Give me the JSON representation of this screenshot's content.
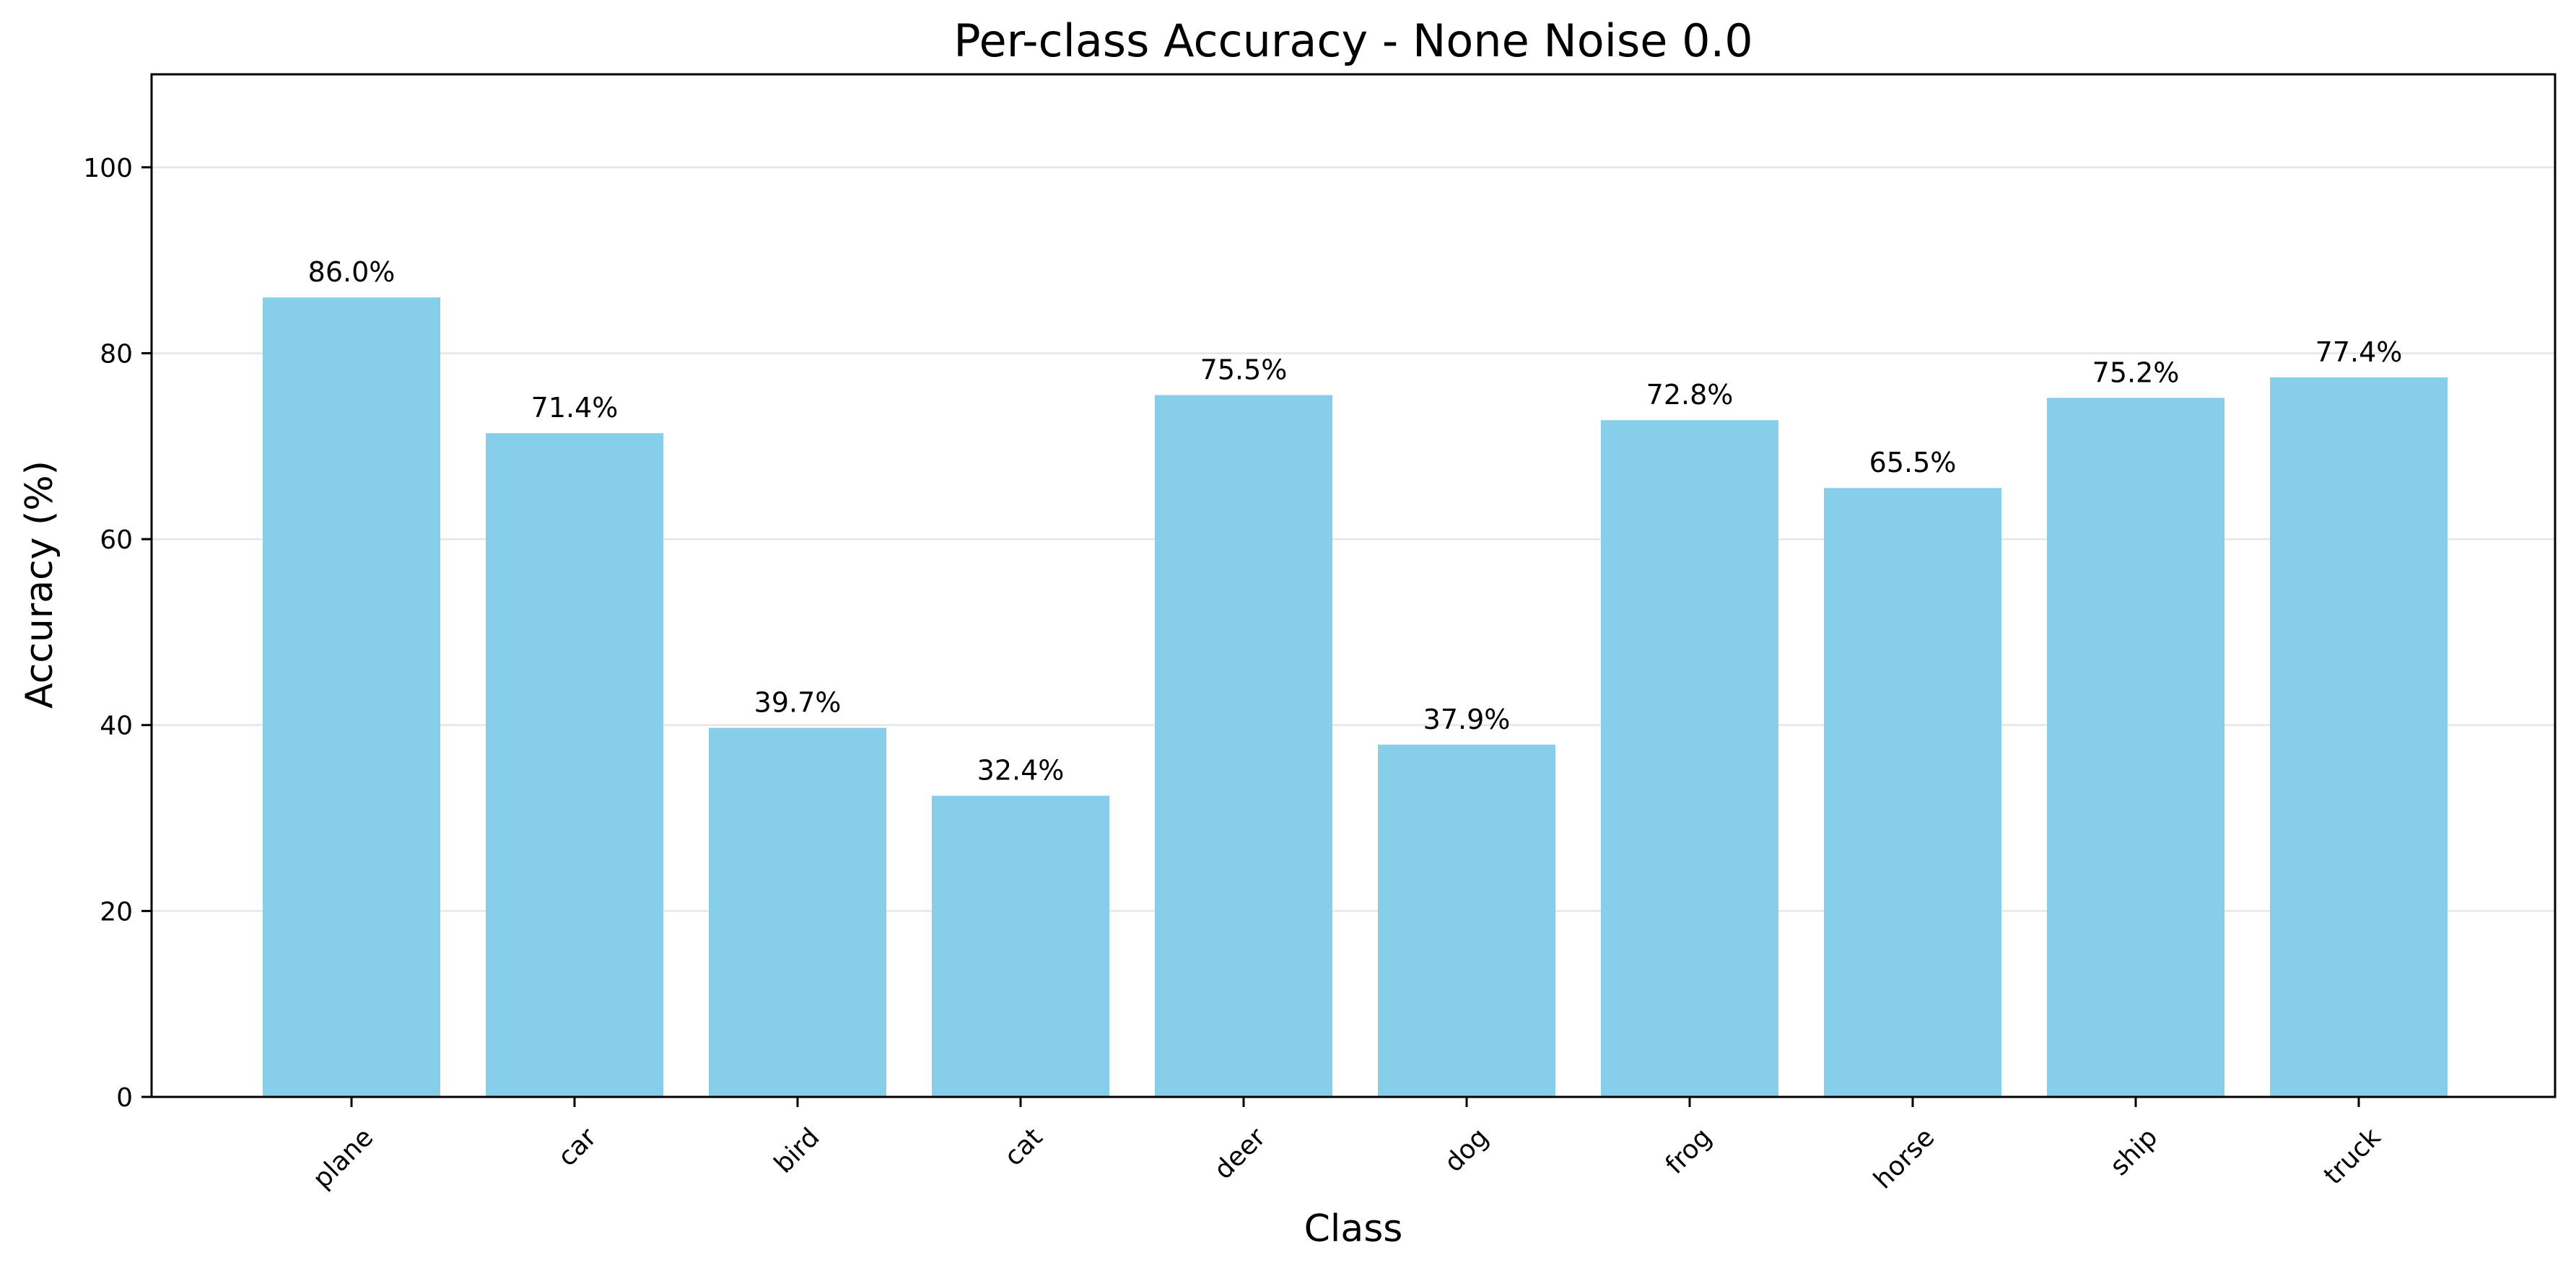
{
  "chart_data": {
    "type": "bar",
    "title": "Per-class Accuracy - None Noise 0.0",
    "xlabel": "Class",
    "ylabel": "Accuracy (%)",
    "categories": [
      "plane",
      "car",
      "bird",
      "cat",
      "deer",
      "dog",
      "frog",
      "horse",
      "ship",
      "truck"
    ],
    "values": [
      86.0,
      71.4,
      39.7,
      32.4,
      75.5,
      37.9,
      72.8,
      65.5,
      75.2,
      77.4
    ],
    "value_labels": [
      "86.0%",
      "71.4%",
      "39.7%",
      "32.4%",
      "75.5%",
      "37.9%",
      "72.8%",
      "65.5%",
      "75.2%",
      "77.4%"
    ],
    "yticks": [
      0,
      20,
      40,
      60,
      80,
      100
    ],
    "ylim": [
      0,
      110
    ],
    "grid": "y",
    "bar_color": "#87CEEB",
    "grid_color": "#e6e6e6",
    "tick_label_rotation": 45
  }
}
